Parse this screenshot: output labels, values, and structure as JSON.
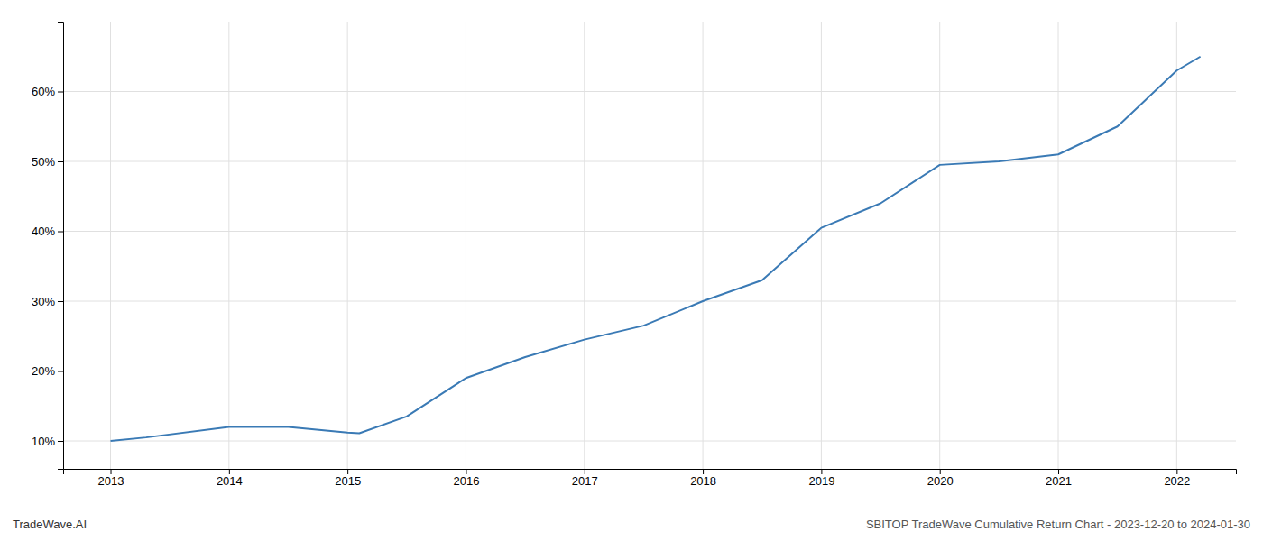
{
  "chart_data": {
    "type": "line",
    "title": "SBITOP TradeWave Cumulative Return Chart - 2023-12-20 to 2024-01-30",
    "annotations": [
      "TradeWave.AI"
    ],
    "x": [
      2013.0,
      2013.3,
      2014.0,
      2014.5,
      2015.0,
      2015.1,
      2015.5,
      2016.0,
      2016.5,
      2017.0,
      2017.5,
      2018.0,
      2018.5,
      2019.0,
      2019.5,
      2020.0,
      2020.5,
      2021.0,
      2021.5,
      2022.0,
      2022.2
    ],
    "values": [
      10.0,
      10.5,
      12.0,
      12.0,
      11.2,
      11.1,
      13.5,
      19.0,
      22.0,
      24.5,
      26.5,
      30.0,
      33.0,
      40.5,
      44.0,
      49.5,
      50.0,
      51.0,
      55.0,
      63.0,
      65.0
    ],
    "color": "#3a7ab5",
    "xlim": [
      2012.6,
      2022.5
    ],
    "xticks": [
      2013,
      2014,
      2015,
      2016,
      2017,
      2018,
      2019,
      2020,
      2021,
      2022
    ],
    "ylim": [
      6,
      70
    ],
    "yticks": [
      {
        "value": 10,
        "label": "10%"
      },
      {
        "value": 20,
        "label": "20%"
      },
      {
        "value": 30,
        "label": "30%"
      },
      {
        "value": 40,
        "label": "40%"
      },
      {
        "value": 50,
        "label": "50%"
      },
      {
        "value": 60,
        "label": "60%"
      }
    ],
    "grid": true
  }
}
